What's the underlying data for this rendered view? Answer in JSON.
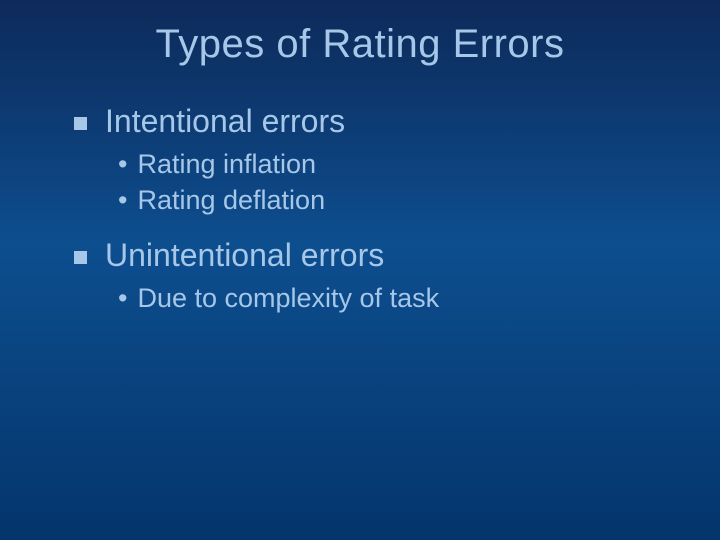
{
  "title": "Types of Rating Errors",
  "colors": {
    "text": "#a6c7e8",
    "background_top": "#0d2a5a",
    "background_bottom": "#04356b"
  },
  "typography": {
    "title_fontsize": 40,
    "level1_fontsize": 32,
    "level2_fontsize": 27,
    "title_font": "Arial",
    "body_font": "Verdana"
  },
  "bullets": [
    {
      "text": "Intentional errors",
      "sub": [
        "Rating inflation",
        "Rating deflation"
      ]
    },
    {
      "text": "Unintentional errors",
      "sub": [
        "Due to complexity of task"
      ]
    }
  ]
}
